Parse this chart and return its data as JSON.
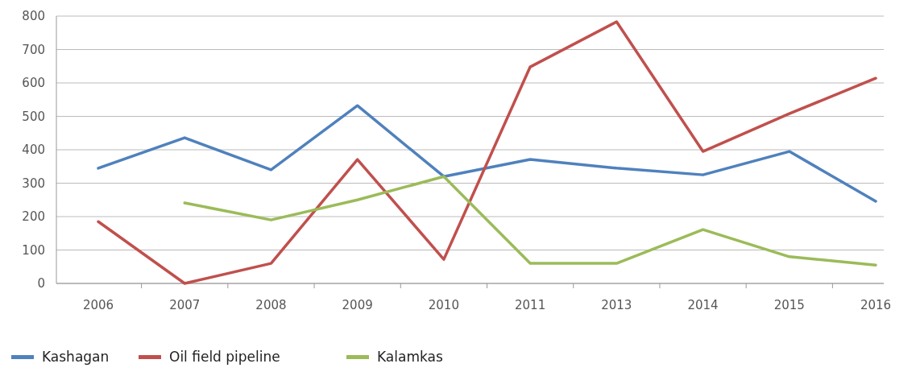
{
  "chart_data": {
    "type": "line",
    "categories": [
      "2006",
      "2007",
      "2008",
      "2009",
      "2010",
      "2011",
      "2013",
      "2014",
      "2015",
      "2016"
    ],
    "series": [
      {
        "name": "Kashagan",
        "color": "#4f81bd",
        "values": [
          345,
          436,
          340,
          532,
          320,
          371,
          345,
          325,
          395,
          246
        ]
      },
      {
        "name": "Oil field pipeline",
        "color": "#c0504d",
        "values": [
          185,
          0,
          60,
          371,
          72,
          648,
          783,
          395,
          508,
          614
        ]
      },
      {
        "name": "Kalamkas",
        "color": "#9bbb59",
        "values": [
          null,
          241,
          190,
          250,
          320,
          60,
          60,
          161,
          80,
          55
        ]
      }
    ],
    "ylim": [
      0,
      800
    ],
    "yticks": [
      0,
      100,
      200,
      300,
      400,
      500,
      600,
      700,
      800
    ],
    "grid": "y",
    "legend": "bottom left",
    "marker": "none",
    "line_style": "solid"
  }
}
